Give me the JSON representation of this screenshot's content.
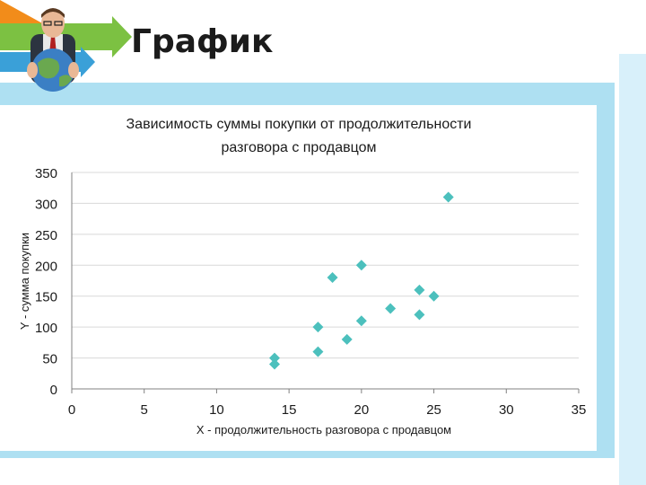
{
  "header": {
    "title": "График"
  },
  "colors": {
    "marker": "#4cc0bd",
    "gridline": "#d9d9d9",
    "panel": "#aee0f2"
  },
  "chart_data": {
    "type": "scatter",
    "title_line1": "Зависимость суммы покупки от продолжительности",
    "title_line2": "разговора с продавцом",
    "xlabel": "X - продолжительность разговора с продавцом",
    "ylabel": "Y - сумма покупки",
    "xlim": [
      0,
      35
    ],
    "ylim": [
      0,
      350
    ],
    "xticks": [
      0,
      5,
      10,
      15,
      20,
      25,
      30,
      35
    ],
    "yticks": [
      0,
      50,
      100,
      150,
      200,
      250,
      300,
      350
    ],
    "grid": "horizontal",
    "points": [
      {
        "x": 14,
        "y": 50
      },
      {
        "x": 14,
        "y": 40
      },
      {
        "x": 17,
        "y": 100
      },
      {
        "x": 17,
        "y": 60
      },
      {
        "x": 18,
        "y": 180
      },
      {
        "x": 19,
        "y": 80
      },
      {
        "x": 20,
        "y": 200
      },
      {
        "x": 20,
        "y": 110
      },
      {
        "x": 22,
        "y": 130
      },
      {
        "x": 24,
        "y": 160
      },
      {
        "x": 24,
        "y": 120
      },
      {
        "x": 25,
        "y": 150
      },
      {
        "x": 26,
        "y": 310
      }
    ]
  }
}
